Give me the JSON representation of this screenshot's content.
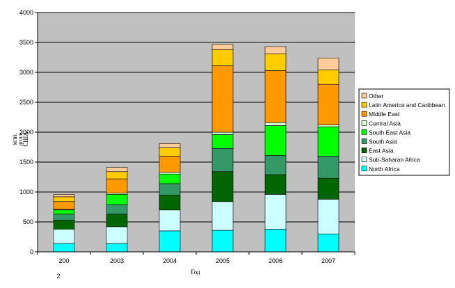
{
  "chart_data": {
    "type": "bar",
    "stacked": true,
    "categories": [
      "200",
      "2003",
      "2004",
      "2005",
      "2006",
      "2007"
    ],
    "category_sublabel": "2",
    "xlabel": "Год",
    "ylabel_lines": [
      "млн.",
      "долл.",
      "США"
    ],
    "ylim": [
      0,
      4000
    ],
    "yticks": [
      0,
      500,
      1000,
      1500,
      2000,
      2500,
      3000,
      3500,
      4000
    ],
    "grid": true,
    "legend_position": "right",
    "plot_background": "#c0c0c0",
    "series": [
      {
        "name": "North Africa",
        "color": "#00ffff",
        "values": [
          140,
          140,
          350,
          360,
          380,
          300
        ]
      },
      {
        "name": "Sub-Saharan Africa",
        "color": "#ccffff",
        "values": [
          240,
          280,
          350,
          480,
          580,
          580
        ]
      },
      {
        "name": "East Asia",
        "color": "#006600",
        "values": [
          150,
          210,
          250,
          500,
          330,
          350
        ]
      },
      {
        "name": "South Asia",
        "color": "#339966",
        "values": [
          100,
          160,
          190,
          390,
          320,
          370
        ]
      },
      {
        "name": "South East Asia",
        "color": "#00ff00",
        "values": [
          70,
          170,
          160,
          230,
          500,
          490
        ]
      },
      {
        "name": "Central Asia",
        "color": "#ccffcc",
        "values": [
          10,
          20,
          30,
          40,
          50,
          30
        ]
      },
      {
        "name": "Middle East",
        "color": "#ff9900",
        "values": [
          130,
          240,
          270,
          1110,
          870,
          680
        ]
      },
      {
        "name": "Latin America and Caribbean",
        "color": "#ffcc00",
        "values": [
          80,
          120,
          140,
          270,
          280,
          240
        ]
      },
      {
        "name": "Other",
        "color": "#ffcc99",
        "values": [
          40,
          70,
          70,
          90,
          120,
          200
        ]
      }
    ]
  }
}
